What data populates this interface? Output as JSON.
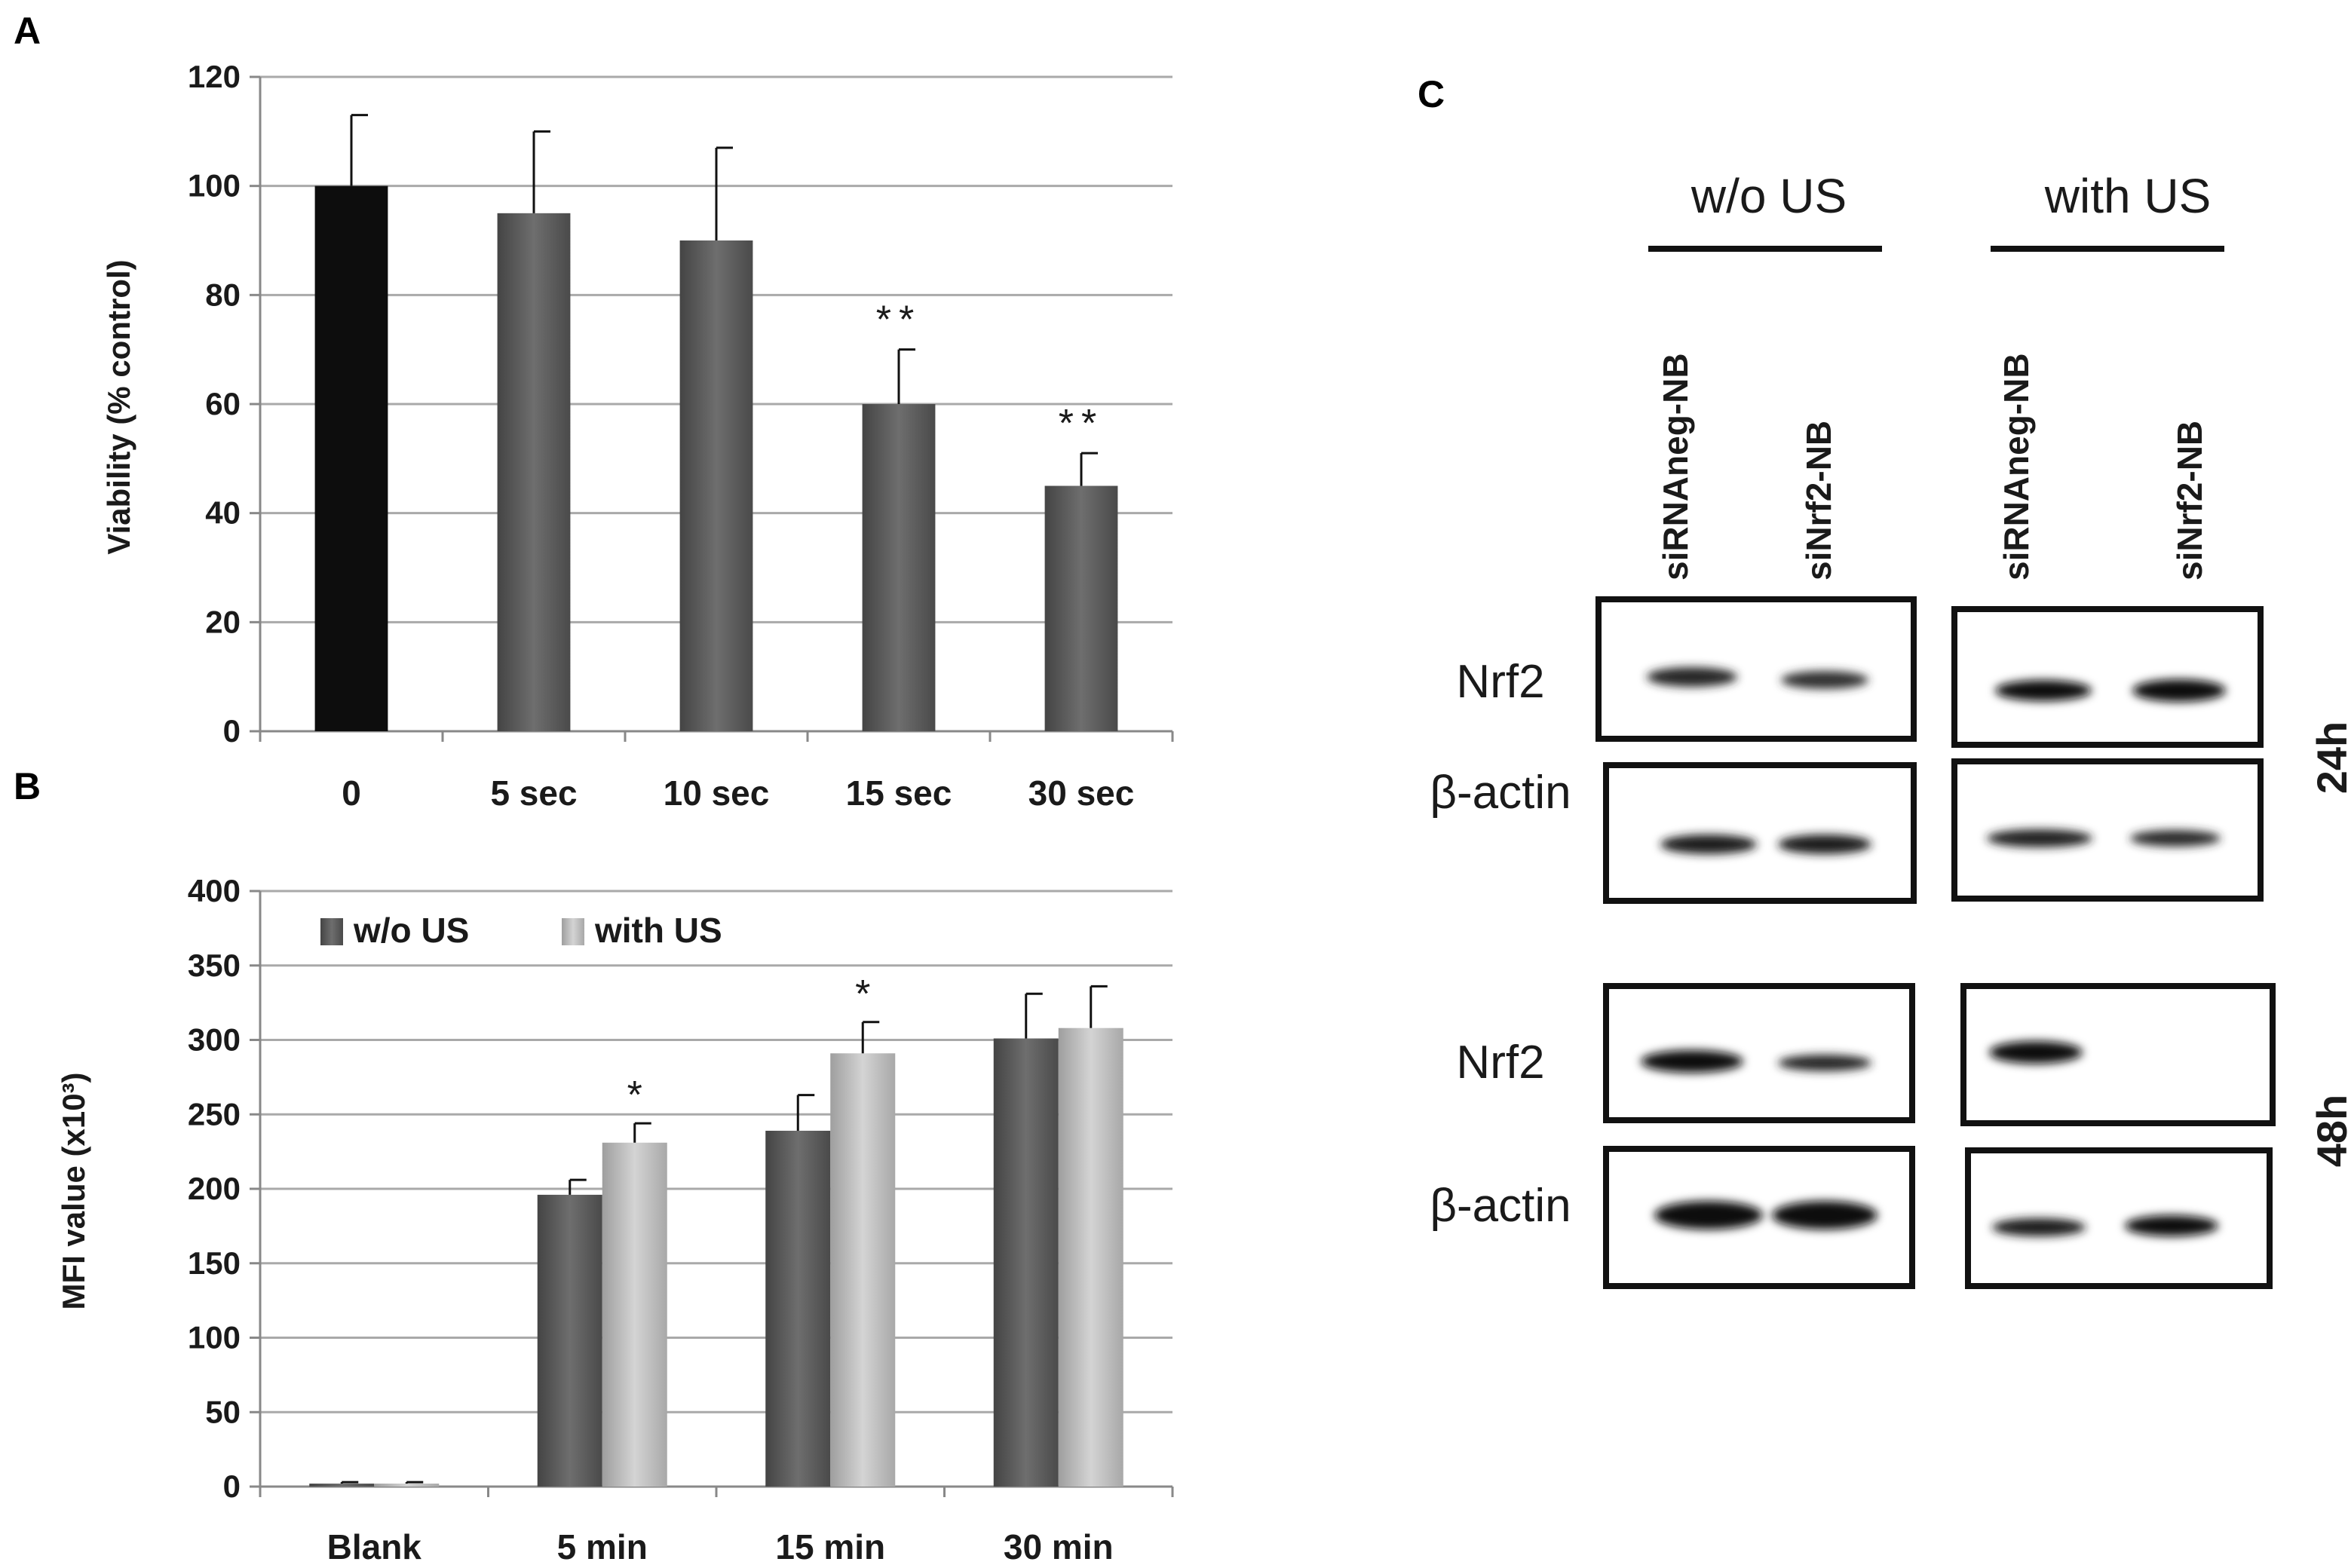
{
  "chart_data": [
    {
      "panel": "A",
      "type": "bar",
      "title": "",
      "xlabel": "",
      "ylabel": "Viability (% control)",
      "ylim": [
        0,
        120
      ],
      "yticks": [
        0,
        20,
        40,
        60,
        80,
        100,
        120
      ],
      "grid": true,
      "categories": [
        "0",
        "5 sec",
        "10 sec",
        "15 sec",
        "30 sec"
      ],
      "values": [
        100,
        95,
        90,
        60,
        45
      ],
      "errors": [
        13,
        15,
        17,
        10,
        6
      ],
      "annotations": [
        "",
        "",
        "",
        "**",
        "**"
      ],
      "bar_colors": [
        "#0d0d0d",
        "#666666",
        "#666666",
        "#666666",
        "#666666"
      ]
    },
    {
      "panel": "B",
      "type": "bar",
      "title": "",
      "xlabel": "",
      "ylabel": "MFI value (x10³)",
      "ylim": [
        0,
        400
      ],
      "yticks": [
        0,
        50,
        100,
        150,
        200,
        250,
        300,
        350,
        400
      ],
      "grid": true,
      "legend": "top-left",
      "categories": [
        "Blank",
        "5 min",
        "15 min",
        "30 min"
      ],
      "series": [
        {
          "name": "w/o US",
          "color": "#555555",
          "values": [
            2,
            196,
            239,
            301
          ],
          "errors": [
            1,
            10,
            24,
            30
          ],
          "annotations": [
            "",
            "",
            "",
            ""
          ]
        },
        {
          "name": "with US",
          "color": "#bdbdbd",
          "values": [
            2,
            231,
            291,
            308
          ],
          "errors": [
            1,
            13,
            21,
            28
          ],
          "annotations": [
            "",
            "*",
            "*",
            ""
          ]
        }
      ]
    }
  ],
  "panel_c": {
    "label": "C",
    "conditions": [
      "w/o US",
      "with US"
    ],
    "lanes": [
      "siRNAneg-NB",
      "siNrf2-NB",
      "siRNAneg-NB",
      "siNrf2-NB"
    ],
    "rows": [
      {
        "label": "Nrf2",
        "time": "24h"
      },
      {
        "label": "β-actin",
        "time": "24h"
      },
      {
        "label": "Nrf2",
        "time": "48h"
      },
      {
        "label": "β-actin",
        "time": "48h"
      }
    ],
    "time_labels": [
      "24h",
      "48h"
    ]
  },
  "labels": {
    "panel_a": "A",
    "panel_b": "B"
  }
}
